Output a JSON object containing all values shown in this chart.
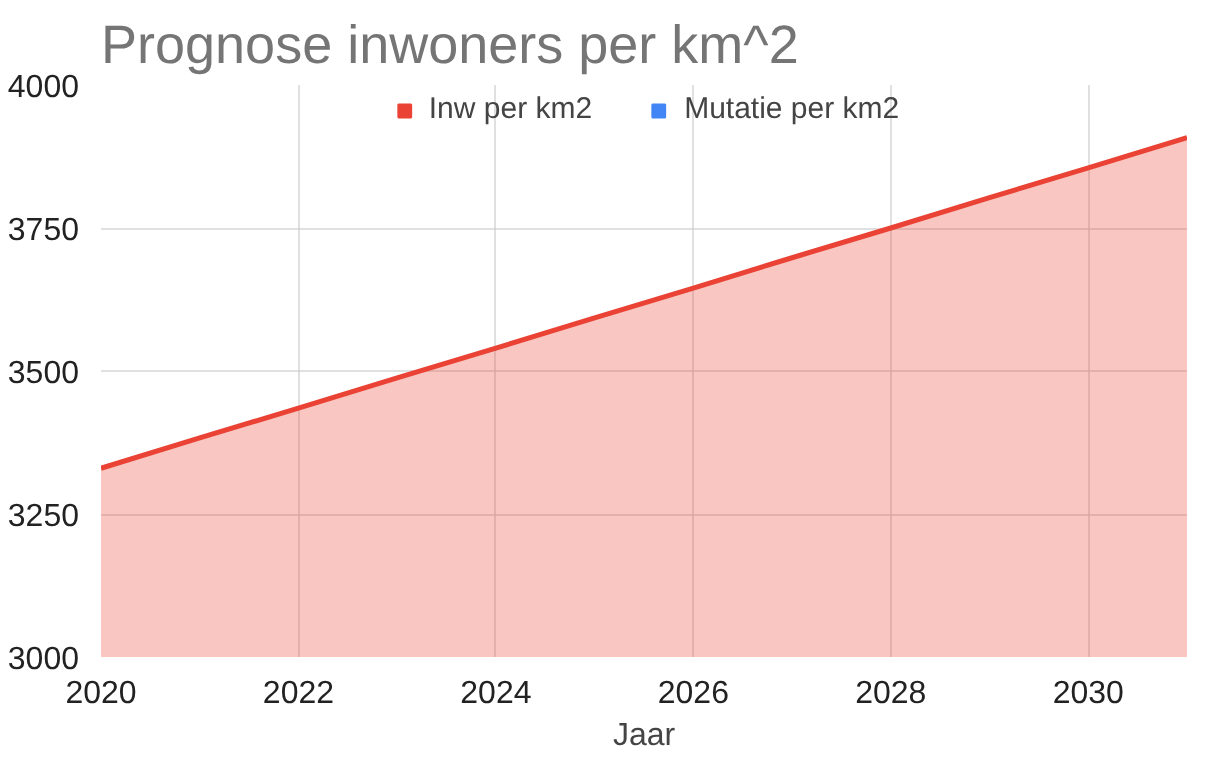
{
  "chart_data": {
    "type": "area",
    "title": "Prognose inwoners per km^2",
    "xlabel": "Jaar",
    "x": [
      2020,
      2021,
      2022,
      2023,
      2024,
      2025,
      2026,
      2027,
      2028,
      2029,
      2030,
      2031
    ],
    "series": [
      {
        "name": "Inw per km2",
        "color": "#ea4335",
        "values": [
          3330,
          3383,
          3435,
          3488,
          3540,
          3593,
          3645,
          3698,
          3750,
          3803,
          3855,
          3908
        ]
      },
      {
        "name": "Mutatie per km2",
        "color": "#4285f4",
        "values": [
          null,
          null,
          null,
          null,
          null,
          null,
          null,
          null,
          null,
          null,
          null,
          null
        ]
      }
    ],
    "xlim": [
      2020,
      2031
    ],
    "xticks": [
      2020,
      2022,
      2024,
      2026,
      2028,
      2030
    ],
    "ylim": [
      3000,
      4000
    ],
    "yticks": [
      3000,
      3250,
      3500,
      3750,
      4000
    ],
    "grid": true,
    "legend": "top"
  }
}
